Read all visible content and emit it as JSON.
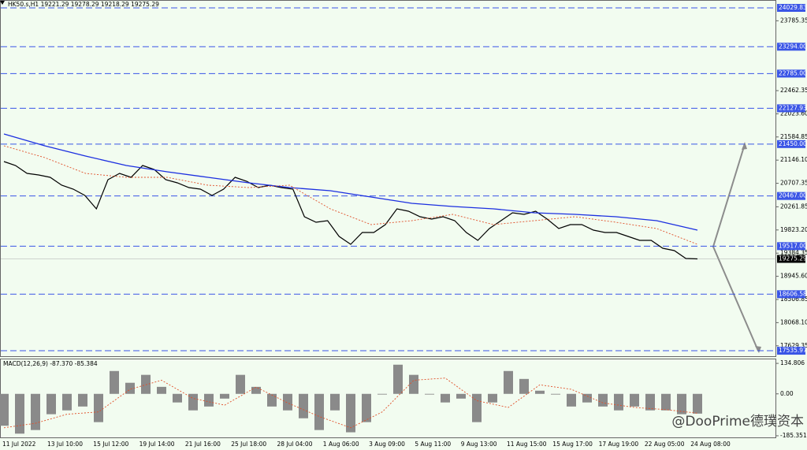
{
  "watermark": "@DooPrime德璞资本",
  "chart_data": [
    {
      "type": "line",
      "title": "HK50.s,H1  19221.29 19278.29 19218.29 19275.29",
      "x_labels": [
        "11 Jul 2022",
        "13 Jul 10:00",
        "15 Jul 12:00",
        "19 Jul 14:00",
        "21 Jul 16:00",
        "25 Jul 18:00",
        "28 Jul 04:00",
        "1 Aug 06:00",
        "3 Aug 09:00",
        "5 Aug 11:00",
        "9 Aug 13:00",
        "11 Aug 15:00",
        "15 Aug 17:00",
        "17 Aug 19:00",
        "22 Aug 05:00",
        "24 Aug 08:00"
      ],
      "ylim": [
        17417,
        24179
      ],
      "yticks": [
        {
          "value": 23785.35,
          "label": "23785.35"
        },
        {
          "value": 22462.35,
          "label": "22462.35"
        },
        {
          "value": 22023.6,
          "label": "22023.60"
        },
        {
          "value": 21584.85,
          "label": "21584.85"
        },
        {
          "value": 21146.1,
          "label": "21146.10"
        },
        {
          "value": 20707.35,
          "label": "20707.35"
        },
        {
          "value": 20261.85,
          "label": "20261.85"
        },
        {
          "value": 19823.2,
          "label": "19823.20"
        },
        {
          "value": 19384.35,
          "label": "19384.35"
        },
        {
          "value": 18945.6,
          "label": "18945.60"
        },
        {
          "value": 18506.85,
          "label": "18506.85"
        },
        {
          "value": 18068.1,
          "label": "18068.10"
        },
        {
          "value": 17629.35,
          "label": "17629.35"
        }
      ],
      "levels": [
        {
          "value": 24029.83,
          "label": "24029.83"
        },
        {
          "value": 23294,
          "label": "23294.00"
        },
        {
          "value": 22785,
          "label": "22785.00"
        },
        {
          "value": 22127.93,
          "label": "22127.93"
        },
        {
          "value": 21450,
          "label": "21450.00"
        },
        {
          "value": 20467,
          "label": "20467.00"
        },
        {
          "value": 19517,
          "label": "19517.00"
        },
        {
          "value": 18606.58,
          "label": "18606.58"
        },
        {
          "value": 17535.97,
          "label": "17535.97"
        }
      ],
      "level_color": "#3a55e6",
      "current": {
        "value": 19275.29,
        "label": "19275.29"
      },
      "series": [
        {
          "color": "#000000",
          "values": [
            21119,
            21044,
            20895,
            20865,
            20820,
            20671,
            20596,
            20477,
            20223,
            20776,
            20895,
            20820,
            21044,
            20970,
            20776,
            20716,
            20627,
            20596,
            20477,
            20596,
            20820,
            20746,
            20627,
            20671,
            20627,
            20596,
            20074,
            19970,
            19999,
            19701,
            19552,
            19776,
            19776,
            19925,
            20223,
            20179,
            20074,
            20029,
            20074,
            19999,
            19776,
            19626,
            19850,
            19999,
            20149,
            20119,
            20179,
            20029,
            19850,
            19925,
            19925,
            19820,
            19776,
            19776,
            19701,
            19626,
            19626,
            19477,
            19432,
            19283,
            19275.29
          ]
        },
        {
          "color": "#1c2fe0",
          "values": [
            21641,
            21418,
            21223,
            21044,
            20925,
            20820,
            20716,
            20627,
            20567,
            20447,
            20328,
            20268,
            20223,
            20149,
            20119,
            20074,
            19999,
            19820
          ]
        },
        {
          "color": "#e0502a",
          "dashed": true,
          "values": [
            21418,
            21194,
            20895,
            20820,
            20820,
            20671,
            20627,
            20671,
            20223,
            19925,
            19999,
            20119,
            19925,
            19999,
            20074,
            19970,
            19850,
            19552
          ]
        }
      ]
    },
    {
      "type": "bar",
      "title": "MACD(12,26,9) -87.370 -85.384",
      "ylim": [
        -196,
        156
      ],
      "yticks": [
        134.806,
        {
          "value": 0,
          "label": "0.00"
        },
        -185.351
      ],
      "color": "#8a8a8a",
      "values": [
        -141,
        -176,
        -160,
        -90,
        -73,
        -56,
        -125,
        101,
        49,
        84,
        31,
        -38,
        -73,
        -56,
        -21,
        84,
        31,
        -56,
        -73,
        -108,
        -160,
        -73,
        -170,
        -125,
        -3,
        129,
        84,
        -3,
        -38,
        -21,
        -125,
        -38,
        101,
        66,
        14,
        -3,
        -56,
        -38,
        -56,
        -73,
        -56,
        -73,
        -73,
        -90,
        -87.37
      ],
      "signal": {
        "color": "#e0502a",
        "values": [
          -150,
          -130,
          -90,
          -80,
          20,
          60,
          -20,
          -50,
          30,
          -40,
          -100,
          -150,
          -80,
          60,
          70,
          -30,
          -60,
          40,
          20,
          -40,
          -60,
          -70,
          -85.384
        ]
      }
    }
  ]
}
